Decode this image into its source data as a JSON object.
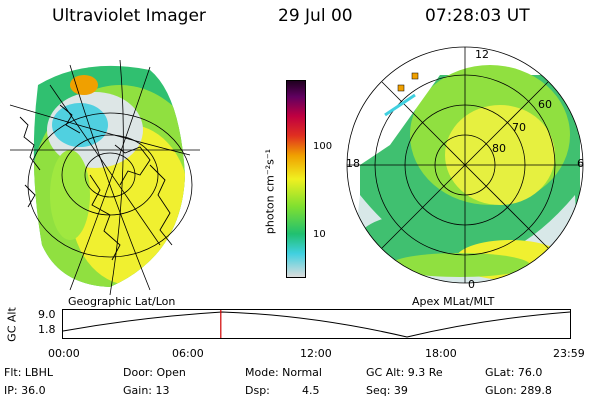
{
  "header": {
    "title": "Ultraviolet Imager",
    "date": "29 Jul 00",
    "time": "07:28:03 UT"
  },
  "left_panel": {
    "caption": "Geographic Lat/Lon"
  },
  "right_panel": {
    "caption": "Apex MLat/MLT",
    "mlt_labels": [
      "12",
      "18",
      "6",
      "0"
    ],
    "mlat_labels": [
      "60",
      "70",
      "80"
    ]
  },
  "colorbar": {
    "label": "photon cm⁻²s⁻¹",
    "ticks": [
      "100",
      "10"
    ],
    "colors": [
      "#dcdcdc",
      "#40d0e0",
      "#20c070",
      "#80e030",
      "#f0f020",
      "#f0a000",
      "#e03020",
      "#c00040",
      "#600060",
      "#200020"
    ]
  },
  "altitude_chart": {
    "ylabel": "GC Alt",
    "yticks": [
      "9.0",
      "1.8"
    ],
    "xticks": [
      "00:00",
      "06:00",
      "12:00",
      "18:00",
      "23:59"
    ],
    "current_time_hours": 7.47,
    "current_marker_color": "#d00000"
  },
  "info": {
    "flt": "Flt: LBHL",
    "door": "Door: Open",
    "mode": "Mode: Normal",
    "gc_alt": "GC Alt: 9.3 Re",
    "glat": "GLat: 76.0",
    "ip": "IP: 36.0",
    "gain": "Gain: 13",
    "dsp_label": "Dsp:",
    "dsp_value": "4.5",
    "seq": "Seq: 39",
    "glon": "GLon: 289.8"
  }
}
